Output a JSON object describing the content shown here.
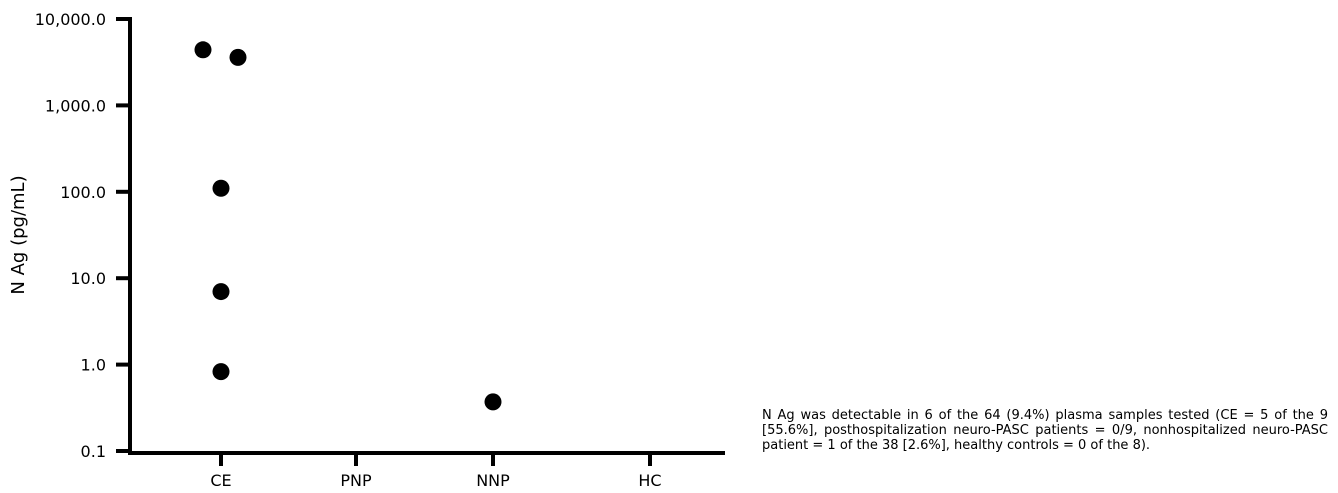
{
  "chart_data": {
    "type": "scatter",
    "title": "",
    "xlabel": "",
    "ylabel": "N Ag (pg/mL)",
    "yscale": "log",
    "ylim": [
      0.1,
      10000
    ],
    "yticks": [
      0.1,
      1,
      10,
      100,
      1000,
      10000
    ],
    "ytick_labels": [
      "0.1",
      "1.0",
      "10.0",
      "100.0",
      "1,000.0",
      "10,000.0"
    ],
    "categories": [
      "CE",
      "PNP",
      "NNP",
      "HC"
    ],
    "points": [
      {
        "category": "CE",
        "value": 4400
      },
      {
        "category": "CE",
        "value": 3600
      },
      {
        "category": "CE",
        "value": 110
      },
      {
        "category": "CE",
        "value": 7
      },
      {
        "category": "CE",
        "value": 0.83
      },
      {
        "category": "NNP",
        "value": 0.37
      }
    ],
    "grid": false,
    "marker_color": "#000000"
  },
  "caption": {
    "text": "N Ag was detectable in 6 of the 64 (9.4%) plasma samples tested (CE = 5 of the 9 [55.6%], posthospitalization neuro-PASC patients = 0/9, nonhospitalized neuro-PASC patient = 1 of the 38 [2.6%], healthy controls = 0 of the 8)."
  }
}
